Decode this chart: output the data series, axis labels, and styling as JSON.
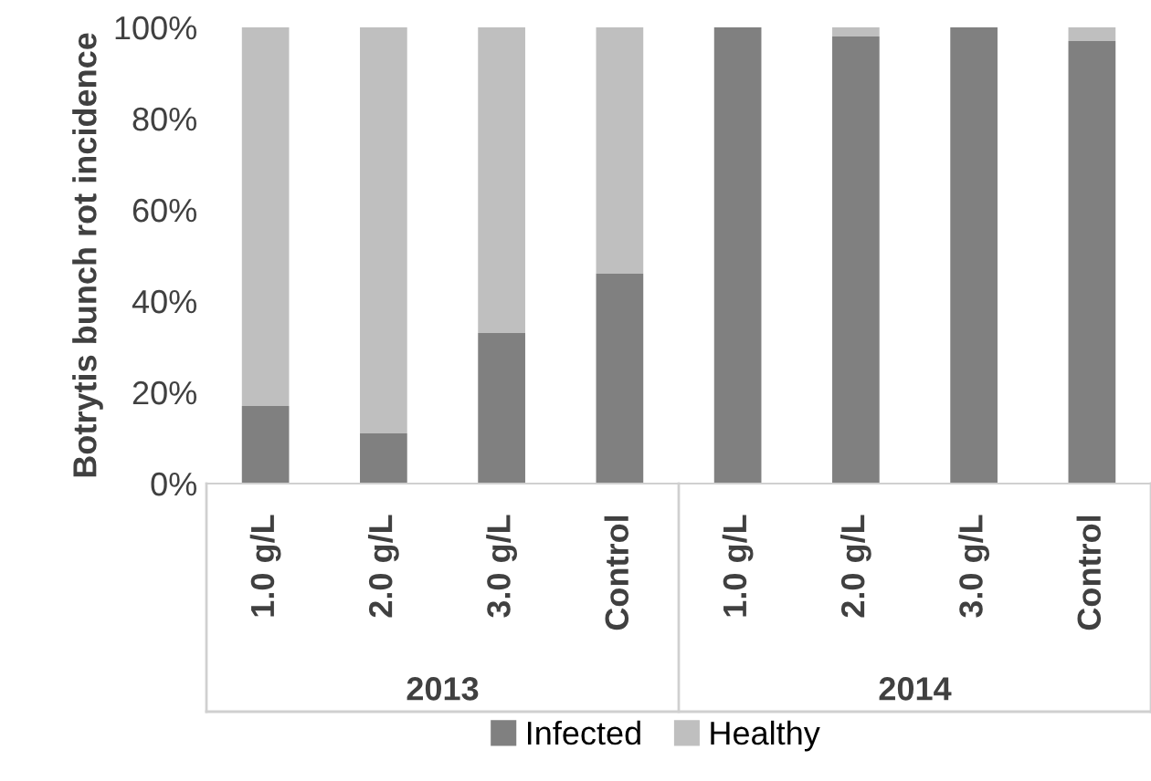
{
  "chart_data": {
    "type": "bar",
    "stacked": true,
    "ylabel": "Botrytis bunch rot incidence",
    "categories": [
      "1.0 g/L",
      "2.0 g/L",
      "3.0 g/L",
      "Control",
      "1.0 g/L",
      "2.0 g/L",
      "3.0 g/L",
      "Control"
    ],
    "series": [
      {
        "name": "Infected",
        "color": "#808080",
        "values": [
          17,
          11,
          33,
          46,
          100,
          98,
          100,
          97
        ]
      },
      {
        "name": "Healthy",
        "color": "#bfbfbf",
        "values": [
          83,
          89,
          67,
          54,
          0,
          2,
          0,
          3
        ]
      }
    ],
    "annotations": [
      "2013",
      "2014"
    ],
    "ylim": [
      0,
      100
    ],
    "yticks": [
      {
        "value": 0,
        "label": "0%"
      },
      {
        "value": 20,
        "label": "20%"
      },
      {
        "value": 40,
        "label": "40%"
      },
      {
        "value": 60,
        "label": "60%"
      },
      {
        "value": 80,
        "label": "80%"
      },
      {
        "value": 100,
        "label": "100%"
      }
    ],
    "grid": false,
    "legend": "bottom"
  }
}
